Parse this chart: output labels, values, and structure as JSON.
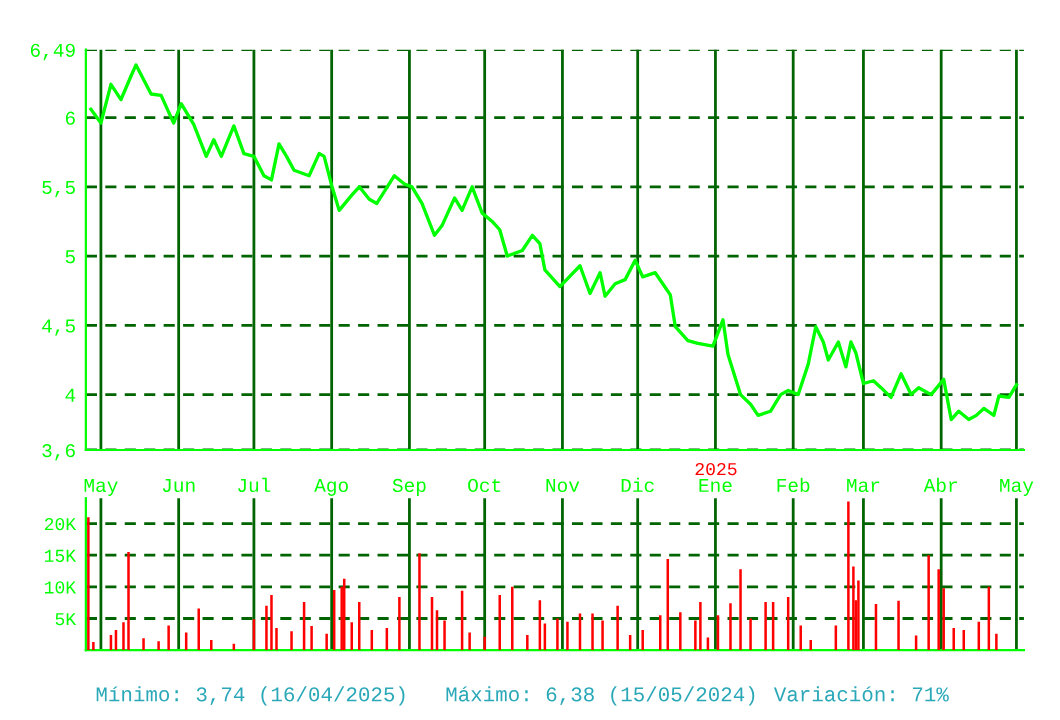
{
  "chart_data": [
    {
      "type": "line",
      "x": [
        "2024-04-27",
        "2024-05-01",
        "2024-05-05",
        "2024-05-09",
        "2024-05-13",
        "2024-05-15",
        "2024-05-21",
        "2024-05-25",
        "2024-05-30",
        "2024-06-02",
        "2024-06-07",
        "2024-06-12",
        "2024-06-15",
        "2024-06-18",
        "2024-06-23",
        "2024-06-27",
        "2024-07-01",
        "2024-07-05",
        "2024-07-08",
        "2024-07-11",
        "2024-07-14",
        "2024-07-17",
        "2024-07-20",
        "2024-07-23",
        "2024-07-27",
        "2024-07-29",
        "2024-08-01",
        "2024-08-04",
        "2024-08-09",
        "2024-08-12",
        "2024-08-16",
        "2024-08-19",
        "2024-08-26",
        "2024-08-30",
        "2024-09-02",
        "2024-09-06",
        "2024-09-11",
        "2024-09-14",
        "2024-09-19",
        "2024-09-22",
        "2024-09-26",
        "2024-09-30",
        "2024-10-04",
        "2024-10-07",
        "2024-10-10",
        "2024-10-16",
        "2024-10-20",
        "2024-10-23",
        "2024-10-25",
        "2024-10-31",
        "2024-11-08",
        "2024-11-12",
        "2024-11-16",
        "2024-11-18",
        "2024-11-22",
        "2024-11-26",
        "2024-11-30",
        "2024-12-03",
        "2024-12-08",
        "2024-12-11",
        "2024-12-14",
        "2024-12-16",
        "2024-12-21",
        "2024-12-25",
        "2024-12-31",
        "2025-01-04",
        "2025-01-06",
        "2025-01-11",
        "2025-01-15",
        "2025-01-18",
        "2025-01-23",
        "2025-01-27",
        "2025-01-30",
        "2025-02-03",
        "2025-02-07",
        "2025-02-10",
        "2025-02-13",
        "2025-02-15",
        "2025-02-19",
        "2025-02-22",
        "2025-02-24",
        "2025-02-26",
        "2025-03-01",
        "2025-03-05",
        "2025-03-08",
        "2025-03-12",
        "2025-03-16",
        "2025-03-20",
        "2025-03-23",
        "2025-03-28",
        "2025-04-02",
        "2025-04-05",
        "2025-04-08",
        "2025-04-12",
        "2025-04-15",
        "2025-04-18",
        "2025-04-22",
        "2025-04-24",
        "2025-04-28",
        "2025-05-01"
      ],
      "series": [
        {
          "color": "#00ff00",
          "values": [
            6.06,
            5.96,
            6.24,
            6.13,
            6.3,
            6.38,
            6.17,
            6.16,
            5.96,
            6.1,
            5.95,
            5.72,
            5.84,
            5.72,
            5.94,
            5.74,
            5.72,
            5.58,
            5.55,
            5.81,
            5.72,
            5.62,
            5.6,
            5.58,
            5.74,
            5.72,
            5.51,
            5.33,
            5.44,
            5.5,
            5.41,
            5.38,
            5.58,
            5.52,
            5.5,
            5.38,
            5.15,
            5.22,
            5.42,
            5.33,
            5.5,
            5.31,
            5.25,
            5.19,
            5.0,
            5.04,
            5.15,
            5.09,
            4.9,
            4.78,
            4.93,
            4.73,
            4.88,
            4.71,
            4.8,
            4.83,
            4.97,
            4.85,
            4.88,
            4.8,
            4.72,
            4.49,
            4.39,
            4.37,
            4.35,
            4.54,
            4.29,
            4.0,
            3.93,
            3.85,
            3.88,
            4.0,
            4.03,
            4.0,
            4.22,
            4.49,
            4.38,
            4.25,
            4.38,
            4.2,
            4.38,
            4.3,
            4.08,
            4.1,
            4.05,
            3.98,
            4.15,
            4.0,
            4.05,
            4.0,
            4.11,
            3.82,
            3.88,
            3.82,
            3.85,
            3.9,
            3.85,
            3.99,
            3.98,
            4.07
          ]
        }
      ],
      "xlim": [
        "2024-04-25",
        "2025-05-04"
      ],
      "xticks": [
        {
          "value": "2024-05-01",
          "label": "May"
        },
        {
          "value": "2024-06-01",
          "label": "Jun"
        },
        {
          "value": "2024-07-01",
          "label": "Jul"
        },
        {
          "value": "2024-08-01",
          "label": "Ago"
        },
        {
          "value": "2024-09-01",
          "label": "Sep"
        },
        {
          "value": "2024-10-01",
          "label": "Oct"
        },
        {
          "value": "2024-11-01",
          "label": "Nov"
        },
        {
          "value": "2024-12-01",
          "label": "Dic"
        },
        {
          "value": "2025-01-01",
          "label": "Ene"
        },
        {
          "value": "2025-02-01",
          "label": "Feb"
        },
        {
          "value": "2025-03-01",
          "label": "Mar"
        },
        {
          "value": "2025-04-01",
          "label": "Abr"
        },
        {
          "value": "2025-05-01",
          "label": "May"
        }
      ],
      "ylim": [
        3.6,
        6.49
      ],
      "yticks": [
        {
          "value": 3.6,
          "label": "3,6"
        },
        4,
        {
          "value": 4.5,
          "label": "4,5"
        },
        5,
        {
          "value": 5.5,
          "label": "5,5"
        },
        6,
        {
          "value": 6.49,
          "label": "6,49"
        }
      ],
      "annotations": [
        "2025"
      ],
      "grid": true,
      "legend": false,
      "marker": "none",
      "line_style": "solid"
    },
    {
      "type": "bar",
      "x": [
        "2024-04-26",
        "2024-04-28",
        "2024-05-05",
        "2024-05-07",
        "2024-05-10",
        "2024-05-12",
        "2024-05-18",
        "2024-05-24",
        "2024-05-28",
        "2024-06-04",
        "2024-06-09",
        "2024-06-14",
        "2024-06-23",
        "2024-07-01",
        "2024-07-06",
        "2024-07-08",
        "2024-07-10",
        "2024-07-16",
        "2024-07-21",
        "2024-07-24",
        "2024-07-30",
        "2024-08-02",
        "2024-08-05",
        "2024-08-06",
        "2024-08-09",
        "2024-08-12",
        "2024-08-17",
        "2024-08-23",
        "2024-08-28",
        "2024-09-05",
        "2024-09-10",
        "2024-09-12",
        "2024-09-15",
        "2024-09-22",
        "2024-09-25",
        "2024-10-01",
        "2024-10-07",
        "2024-10-12",
        "2024-10-18",
        "2024-10-23",
        "2024-10-25",
        "2024-10-30",
        "2024-11-03",
        "2024-11-08",
        "2024-11-13",
        "2024-11-17",
        "2024-11-23",
        "2024-11-28",
        "2024-12-03",
        "2024-12-10",
        "2024-12-13",
        "2024-12-18",
        "2024-12-24",
        "2024-12-26",
        "2024-12-29",
        "2025-01-02",
        "2025-01-07",
        "2025-01-11",
        "2025-01-15",
        "2025-01-21",
        "2025-01-24",
        "2025-01-30",
        "2025-02-04",
        "2025-02-08",
        "2025-02-18",
        "2025-02-23",
        "2025-02-25",
        "2025-02-26",
        "2025-02-27",
        "2025-03-06",
        "2025-03-15",
        "2025-03-22",
        "2025-03-27",
        "2025-03-31",
        "2025-04-02",
        "2025-04-06",
        "2025-04-10",
        "2025-04-16",
        "2025-04-20",
        "2025-04-23"
      ],
      "series": [
        {
          "color": "#ff0000",
          "values": [
            21000,
            1300,
            2400,
            3200,
            4400,
            15500,
            1900,
            1400,
            3900,
            2800,
            6600,
            1600,
            1000,
            4900,
            7000,
            8700,
            3500,
            3000,
            7600,
            3800,
            2600,
            9500,
            10000,
            11300,
            4400,
            7600,
            3200,
            3500,
            8400,
            15300,
            8400,
            6300,
            4700,
            9400,
            2800,
            2100,
            8700,
            10000,
            2400,
            7900,
            4200,
            5000,
            4500,
            5800,
            5800,
            4700,
            7000,
            2400,
            3200,
            5500,
            14400,
            6000,
            4700,
            7600,
            2000,
            5500,
            7400,
            12800,
            5000,
            7600,
            7600,
            8400,
            3900,
            1600,
            3900,
            23500,
            13200,
            7900,
            11000,
            7300,
            7800,
            2300,
            15000,
            12800,
            9800,
            3500,
            3200,
            4500,
            10000,
            2600
          ]
        }
      ],
      "xlim": [
        "2024-04-25",
        "2025-05-04"
      ],
      "xticks": [
        {
          "value": "2024-05-01",
          "label": null
        },
        {
          "value": "2024-06-01",
          "label": null
        },
        {
          "value": "2024-07-01",
          "label": null
        },
        {
          "value": "2024-08-01",
          "label": null
        },
        {
          "value": "2024-09-01",
          "label": null
        },
        {
          "value": "2024-10-01",
          "label": null
        },
        {
          "value": "2024-11-01",
          "label": null
        },
        {
          "value": "2024-12-01",
          "label": null
        },
        {
          "value": "2025-01-01",
          "label": null
        },
        {
          "value": "2025-02-01",
          "label": null
        },
        {
          "value": "2025-03-01",
          "label": null
        },
        {
          "value": "2025-04-01",
          "label": null
        },
        {
          "value": "2025-05-01",
          "label": null
        }
      ],
      "ylim": [
        0,
        24000
      ],
      "yticks": [
        {
          "value": 5000,
          "label": "5K"
        },
        {
          "value": 10000,
          "label": "10K"
        },
        {
          "value": 15000,
          "label": "15K"
        },
        {
          "value": 20000,
          "label": "20K"
        }
      ],
      "tick_labels": "y",
      "grid": true,
      "legend": false,
      "annotations": [
        "Mínimo: 3,74 (16/04/2025)",
        "Máximo: 6,38 (15/05/2024)",
        "Variación: 71%"
      ]
    }
  ]
}
